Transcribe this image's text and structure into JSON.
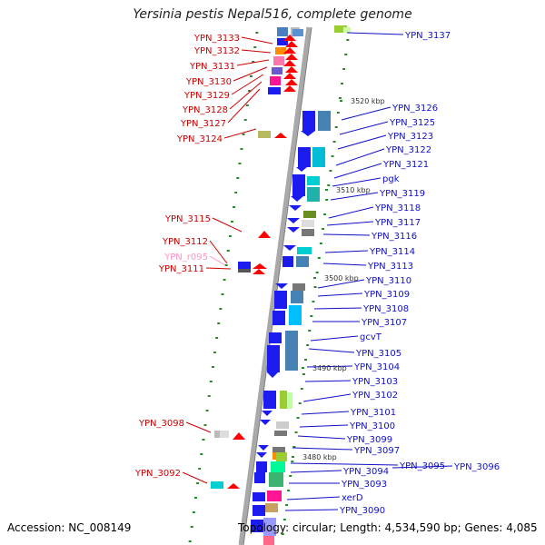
{
  "title": "Yersinia pestis Nepal516, complete genome",
  "footer": {
    "accession": "Accession: NC_008149",
    "summary": "Topology: circular; Length: 4,534,590 bp; Genes: 4,085"
  },
  "ticks": [
    "3520 kbp",
    "3510 kbp",
    "3500 kbp",
    "3490 kbp",
    "3480 kbp"
  ],
  "left_labels": [
    "YPN_3133",
    "YPN_3132",
    "YPN_3131",
    "YPN_3130",
    "YPN_3129",
    "YPN_3128",
    "YPN_3127",
    "YPN_3124",
    "YPN_3115",
    "YPN_3112",
    "YPN_r095",
    "YPN_3111",
    "YPN_3098",
    "YPN_3092"
  ],
  "right_labels": [
    "YPN_3137",
    "YPN_3126",
    "YPN_3125",
    "YPN_3123",
    "YPN_3122",
    "YPN_3121",
    "pgk",
    "YPN_3119",
    "YPN_3118",
    "YPN_3117",
    "YPN_3116",
    "YPN_3114",
    "YPN_3113",
    "YPN_3110",
    "YPN_3109",
    "YPN_3108",
    "YPN_3107",
    "gcvT",
    "YPN_3105",
    "YPN_3104",
    "YPN_3103",
    "YPN_3102",
    "YPN_3101",
    "YPN_3100",
    "YPN_3099",
    "YPN_3097",
    "YPN_3095",
    "YPN_3096",
    "YPN_3094",
    "YPN_3093",
    "xerD",
    "YPN_3090"
  ]
}
